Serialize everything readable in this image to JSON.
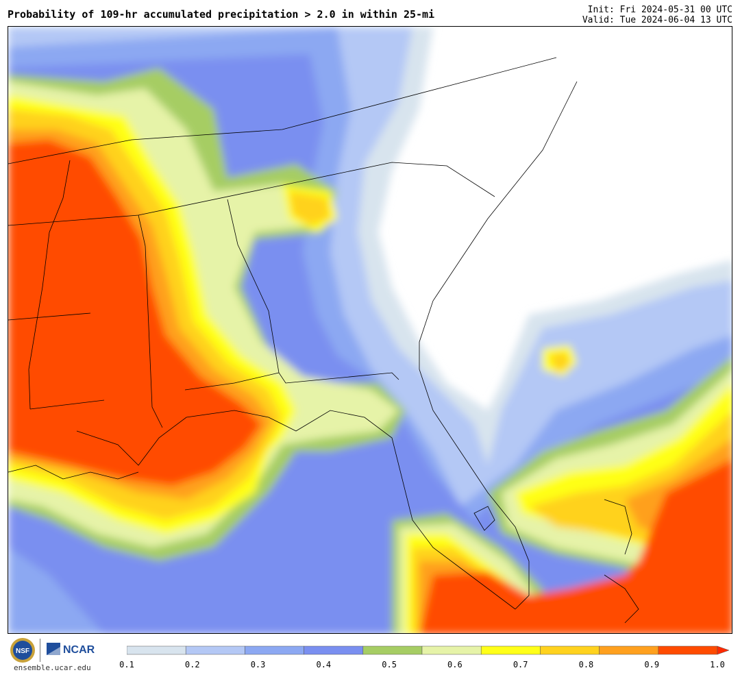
{
  "header": {
    "title": "Probability of 109-hr accumulated precipitation > 2.0 in within 25-mi",
    "init": "Init: Fri 2024-05-31 00 UTC",
    "valid": "Valid: Tue 2024-06-04 13 UTC"
  },
  "legend": {
    "ticks": [
      "0.1",
      "0.2",
      "0.3",
      "0.4",
      "0.5",
      "0.6",
      "0.7",
      "0.8",
      "0.9",
      "1.0"
    ],
    "colors": [
      "#d8e4ee",
      "#b4c8f5",
      "#8ca8f2",
      "#7a8ff0",
      "#a6cd64",
      "#e6f3a8",
      "#ffff19",
      "#ffd21e",
      "#ffa01e",
      "#ff4b00"
    ],
    "overflow_color": "#ff2a00"
  },
  "logos": {
    "nsf_text": "NSF",
    "ncar_text": "NCAR",
    "url": "ensemble.ucar.edu"
  }
}
